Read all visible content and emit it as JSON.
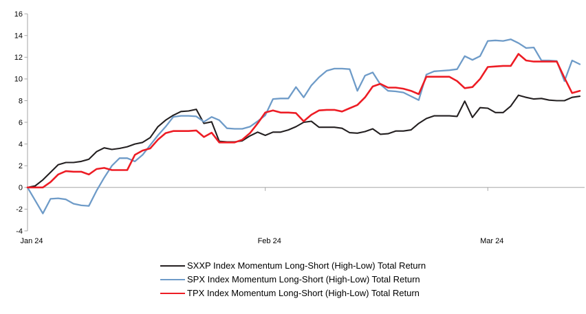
{
  "chart_data": {
    "type": "line",
    "title": "",
    "xlabel": "",
    "ylabel": "",
    "x_axis": {
      "tick_labels": [
        "Jan 24",
        "Feb 24",
        "Mar 24"
      ],
      "tick_day_indices": [
        0,
        31,
        60
      ],
      "unit": "daily points, Jan 1 2024 through mid-March 2024"
    },
    "y_axis": {
      "min": -4,
      "max": 16,
      "tick_step": 2,
      "tick_labels": [
        "16",
        "14",
        "12",
        "10",
        "8",
        "6",
        "4",
        "2",
        "0",
        "-2",
        "-4"
      ]
    },
    "grid": "zero-line-only",
    "legend_position": "bottom-left",
    "series": [
      {
        "name": "SXXP Index Momentum Long-Short (High-Low) Total Return",
        "color": "#231f20",
        "values": [
          0,
          0.15,
          0.7,
          1.4,
          2.1,
          2.3,
          2.3,
          2.4,
          2.6,
          3.3,
          3.65,
          3.5,
          3.6,
          3.75,
          4.0,
          4.15,
          4.6,
          5.6,
          6.2,
          6.65,
          7.0,
          7.05,
          7.2,
          5.9,
          6.05,
          4.25,
          4.2,
          4.2,
          4.3,
          4.75,
          5.1,
          4.8,
          5.1,
          5.1,
          5.3,
          5.6,
          6.0,
          6.1,
          5.55,
          5.55,
          5.55,
          5.45,
          5.05,
          5.0,
          5.15,
          5.4,
          4.9,
          4.95,
          5.2,
          5.2,
          5.3,
          5.9,
          6.35,
          6.6,
          6.6,
          6.6,
          6.55,
          7.95,
          6.45,
          7.35,
          7.3,
          6.9,
          6.9,
          7.5,
          8.5,
          8.3,
          8.15,
          8.2,
          8.05,
          8.0,
          8.0,
          8.3,
          8.4
        ]
      },
      {
        "name": "SPX Index Momentum Long-Short (High-Low) Total Return",
        "color": "#6e9bc8",
        "values": [
          0,
          -1.2,
          -2.4,
          -1.05,
          -1.0,
          -1.1,
          -1.5,
          -1.65,
          -1.7,
          -0.3,
          0.9,
          2.0,
          2.7,
          2.7,
          2.4,
          3.0,
          3.9,
          4.8,
          5.6,
          6.5,
          6.6,
          6.6,
          6.55,
          6.05,
          6.5,
          6.2,
          5.45,
          5.4,
          5.4,
          5.6,
          6.1,
          6.65,
          8.15,
          8.2,
          8.2,
          9.25,
          8.3,
          9.4,
          10.15,
          10.75,
          10.95,
          10.95,
          10.9,
          8.9,
          10.3,
          10.6,
          9.5,
          8.9,
          8.85,
          8.75,
          8.4,
          8.05,
          10.4,
          10.7,
          10.75,
          10.8,
          10.9,
          12.1,
          11.75,
          12.1,
          13.5,
          13.55,
          13.5,
          13.65,
          13.3,
          12.85,
          12.9,
          11.7,
          11.7,
          11.65,
          9.8,
          11.7,
          11.35
        ]
      },
      {
        "name": "TPX Index Momentum Long-Short (High-Low) Total Return",
        "color": "#ed1c24",
        "values": [
          0,
          0,
          0,
          0.5,
          1.2,
          1.5,
          1.45,
          1.45,
          1.2,
          1.7,
          1.8,
          1.6,
          1.6,
          1.6,
          3.0,
          3.4,
          3.6,
          4.4,
          5.0,
          5.2,
          5.2,
          5.2,
          5.25,
          4.65,
          5.05,
          4.15,
          4.15,
          4.15,
          4.4,
          5.0,
          5.9,
          6.9,
          7.1,
          6.9,
          6.9,
          6.85,
          6.1,
          6.7,
          7.1,
          7.15,
          7.15,
          7.0,
          7.3,
          7.6,
          8.3,
          9.3,
          9.55,
          9.2,
          9.2,
          9.1,
          8.9,
          8.6,
          10.2,
          10.2,
          10.2,
          10.2,
          9.8,
          9.15,
          9.25,
          10.0,
          11.1,
          11.15,
          11.2,
          11.2,
          12.3,
          11.7,
          11.6,
          11.6,
          11.6,
          11.6,
          10.1,
          8.7,
          8.9
        ]
      }
    ]
  },
  "colors": {
    "axis": "#a6a6a6",
    "text": "#000000",
    "background": "#ffffff"
  }
}
